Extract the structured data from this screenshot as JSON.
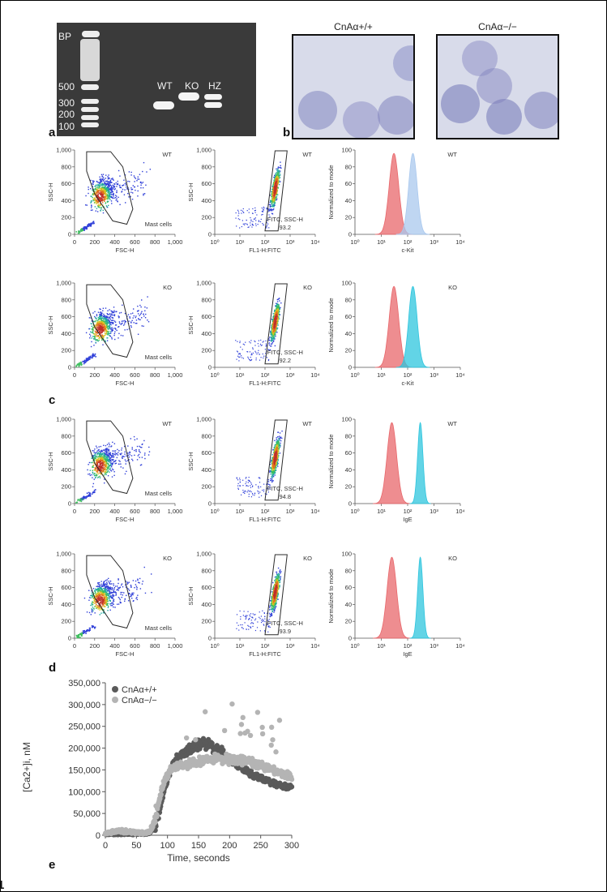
{
  "figure_number": "1",
  "colors": {
    "gate": "#2b2b2b",
    "wt_histogram": "#e8676b",
    "kit_wt_overlay": "#a9c8ee",
    "ko_overlay": "#2ec5de",
    "series_wt": "#5a5a5a",
    "series_ko": "#b4b4b4"
  },
  "panel_a": {
    "letter": "a",
    "ladder_label": "BP",
    "ladder_ticks": [
      "500",
      "300",
      "200",
      "100"
    ],
    "lanes": [
      "WT",
      "KO",
      "HZ"
    ]
  },
  "panel_b": {
    "letter": "b",
    "left_title": "CnAα+/+",
    "right_title": "CnAα−/−"
  },
  "panel_c": {
    "letter": "c"
  },
  "panel_d": {
    "letter": "d"
  },
  "panel_e": {
    "letter": "e"
  },
  "flow_rows": [
    {
      "genotype": "WT",
      "fitc_label": "FITC, SSC-H",
      "fitc_value": "93.2",
      "hist_xlabel": "c-Kit",
      "marker": "kit"
    },
    {
      "genotype": "KO",
      "fitc_label": "FITC, SSC-H",
      "fitc_value": "92.2",
      "hist_xlabel": "c-Kit",
      "marker": "kit"
    },
    {
      "genotype": "WT",
      "fitc_label": "FITC, SSC-H",
      "fitc_value": "94.8",
      "hist_xlabel": "IgE",
      "marker": "ige"
    },
    {
      "genotype": "KO",
      "fitc_label": "FITC, SSC-H",
      "fitc_value": "93.9",
      "hist_xlabel": "IgE",
      "marker": "ige"
    }
  ],
  "flow_labels": {
    "fsc_xlabel": "FSC-H",
    "ssc_ylabel": "SSC-H",
    "fl1_xlabel": "FL1-H:FITC",
    "hist_ylabel": "Normalized to mode",
    "gate_label": "Mast cells",
    "linear_ticks": [
      "0",
      "200",
      "400",
      "600",
      "800",
      "1,000"
    ],
    "log_ticks": [
      "10⁰",
      "10¹",
      "10²",
      "10³",
      "10⁴"
    ],
    "hist_yticks": [
      "0",
      "20",
      "40",
      "60",
      "80",
      "100"
    ]
  },
  "chart_data": {
    "type": "scatter",
    "title": "",
    "xlabel": "Time, seconds",
    "ylabel": "[Ca2+]i, nM",
    "xlim": [
      0,
      300
    ],
    "ylim": [
      0,
      350000
    ],
    "xticks": [
      "0",
      "50",
      "100",
      "150",
      "200",
      "250",
      "300"
    ],
    "yticks": [
      "0",
      "50,000",
      "100,000",
      "150,000",
      "200,000",
      "250,000",
      "300,000",
      "350,000"
    ],
    "legend_position": "top-left",
    "series": [
      {
        "name": "CnAα+/+",
        "x": [
          0,
          20,
          40,
          60,
          70,
          75,
          80,
          85,
          90,
          95,
          100,
          105,
          110,
          115,
          120,
          125,
          130,
          140,
          150,
          160,
          170,
          180,
          190,
          200,
          210,
          220,
          230,
          240,
          250,
          260,
          270,
          280,
          290,
          300
        ],
        "y": [
          1000,
          1000,
          1500,
          2000,
          3000,
          8000,
          20000,
          45000,
          75000,
          105000,
          130000,
          150000,
          165000,
          175000,
          180000,
          185000,
          190000,
          200000,
          208000,
          210000,
          205000,
          195000,
          185000,
          175000,
          165000,
          155000,
          145000,
          138000,
          130000,
          125000,
          120000,
          115000,
          110000,
          107000
        ]
      },
      {
        "name": "CnAα−/−",
        "x": [
          0,
          20,
          40,
          60,
          70,
          75,
          80,
          85,
          90,
          95,
          100,
          105,
          110,
          115,
          120,
          125,
          130,
          140,
          150,
          160,
          170,
          180,
          190,
          200,
          210,
          220,
          230,
          240,
          250,
          260,
          270,
          280,
          290,
          300
        ],
        "y": [
          2000,
          8000,
          6000,
          3000,
          5000,
          15000,
          40000,
          70000,
          100000,
          125000,
          140000,
          150000,
          155000,
          158000,
          160000,
          162000,
          163000,
          165000,
          168000,
          172000,
          175000,
          176000,
          176000,
          175000,
          174000,
          172000,
          170000,
          166000,
          160000,
          155000,
          150000,
          145000,
          140000,
          132000
        ]
      }
    ]
  }
}
